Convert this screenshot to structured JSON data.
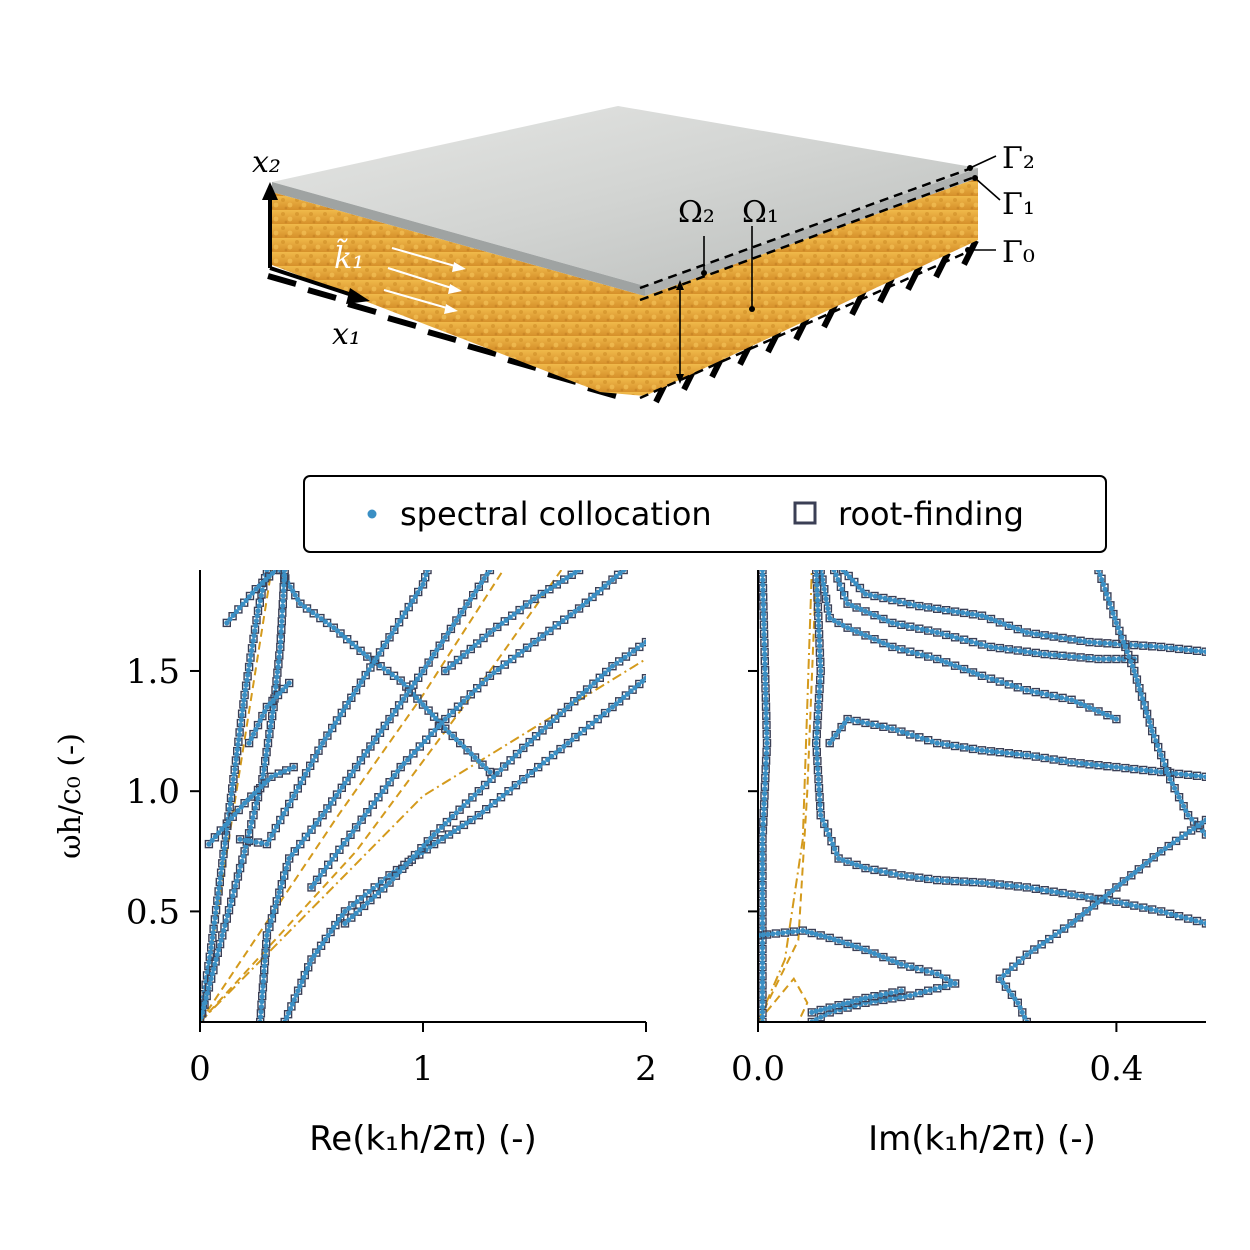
{
  "diagram": {
    "labels": {
      "x2": "x₂",
      "x1": "x₁",
      "k1": "k̃₁",
      "omega2": "Ω₂",
      "omega1": "Ω₁",
      "gamma2": "Γ₂",
      "gamma1": "Γ₁",
      "gamma0": "Γ₀"
    },
    "colors": {
      "plate": "#c8cbc9",
      "foam": "#e6a62c",
      "hatch": "#000000"
    }
  },
  "legend": {
    "spectral": "spectral collocation",
    "root": "root-finding",
    "placement": "top-center"
  },
  "colors": {
    "spectral": "#3a8fc4",
    "root": "#3b3f55",
    "analytic": "#d49a1c"
  },
  "chart_data": [
    {
      "type": "scatter",
      "xlabel": "Re(k₁h/2π) (-)",
      "ylabel": "ωh/c₀ (-)",
      "xlim": [
        0,
        2
      ],
      "ylim": [
        0.04,
        1.92
      ],
      "xticks": [
        0,
        1,
        2
      ],
      "xtick_labels": [
        "0",
        "1",
        "2"
      ],
      "yticks": [
        0.5,
        1.0,
        1.5
      ],
      "ytick_labels": [
        "0.5",
        "1.0",
        "1.5"
      ],
      "spectral_branches": [
        [
          [
            0.0,
            0.04
          ],
          [
            0.05,
            0.35
          ],
          [
            0.1,
            0.7
          ],
          [
            0.15,
            1.05
          ],
          [
            0.2,
            1.4
          ],
          [
            0.26,
            1.75
          ],
          [
            0.3,
            1.92
          ]
        ],
        [
          [
            0.12,
            1.7
          ],
          [
            0.25,
            1.84
          ],
          [
            0.34,
            1.92
          ]
        ],
        [
          [
            0.36,
            1.92
          ],
          [
            0.45,
            1.78
          ],
          [
            0.6,
            1.68
          ],
          [
            0.75,
            1.56
          ],
          [
            0.9,
            1.46
          ],
          [
            1.0,
            1.36
          ],
          [
            1.1,
            1.26
          ],
          [
            1.2,
            1.17
          ],
          [
            1.3,
            1.08
          ]
        ],
        [
          [
            0.0,
            0.04
          ],
          [
            0.1,
            0.4
          ],
          [
            0.2,
            0.75
          ],
          [
            0.28,
            1.05
          ],
          [
            0.33,
            1.35
          ],
          [
            0.36,
            1.6
          ],
          [
            0.38,
            1.92
          ]
        ],
        [
          [
            0.04,
            0.78
          ],
          [
            0.2,
            0.95
          ],
          [
            0.32,
            1.06
          ],
          [
            0.42,
            1.1
          ]
        ],
        [
          [
            0.27,
            0.04
          ],
          [
            0.3,
            0.4
          ],
          [
            0.4,
            0.72
          ],
          [
            0.55,
            0.9
          ],
          [
            0.7,
            1.1
          ],
          [
            0.85,
            1.3
          ],
          [
            1.0,
            1.5
          ],
          [
            1.1,
            1.64
          ],
          [
            1.2,
            1.78
          ],
          [
            1.3,
            1.92
          ]
        ],
        [
          [
            0.18,
            0.8
          ],
          [
            0.3,
            0.78
          ],
          [
            0.42,
            0.98
          ],
          [
            0.55,
            1.2
          ],
          [
            0.7,
            1.42
          ],
          [
            0.85,
            1.64
          ],
          [
            1.0,
            1.86
          ],
          [
            1.02,
            1.92
          ]
        ],
        [
          [
            0.22,
            1.2
          ],
          [
            0.3,
            1.35
          ],
          [
            0.4,
            1.45
          ]
        ],
        [
          [
            0.38,
            0.04
          ],
          [
            0.5,
            0.3
          ],
          [
            0.65,
            0.5
          ],
          [
            0.85,
            0.65
          ],
          [
            1.05,
            0.78
          ],
          [
            1.25,
            0.9
          ],
          [
            1.45,
            1.05
          ],
          [
            1.65,
            1.2
          ],
          [
            1.85,
            1.35
          ],
          [
            2.0,
            1.47
          ]
        ],
        [
          [
            0.65,
            0.45
          ],
          [
            0.85,
            0.62
          ],
          [
            1.05,
            0.82
          ],
          [
            1.25,
            1.0
          ],
          [
            1.45,
            1.18
          ],
          [
            1.65,
            1.35
          ],
          [
            1.85,
            1.52
          ],
          [
            2.0,
            1.62
          ]
        ],
        [
          [
            0.5,
            0.6
          ],
          [
            0.7,
            0.85
          ],
          [
            0.9,
            1.1
          ],
          [
            1.1,
            1.3
          ],
          [
            1.3,
            1.48
          ],
          [
            1.5,
            1.62
          ],
          [
            1.7,
            1.76
          ],
          [
            1.85,
            1.88
          ],
          [
            1.9,
            1.92
          ]
        ],
        [
          [
            1.1,
            1.5
          ],
          [
            1.3,
            1.66
          ],
          [
            1.5,
            1.8
          ],
          [
            1.7,
            1.92
          ]
        ]
      ],
      "analytic_dashed": [
        [
          [
            0.0,
            0.04
          ],
          [
            0.62,
            0.9
          ],
          [
            1.0,
            1.4
          ],
          [
            1.36,
            1.92
          ]
        ],
        [
          [
            0.0,
            0.04
          ],
          [
            0.7,
            0.75
          ],
          [
            1.3,
            1.5
          ],
          [
            1.62,
            1.92
          ]
        ],
        [
          [
            0.0,
            0.04
          ],
          [
            0.32,
            1.92
          ]
        ]
      ],
      "analytic_dashdot": [
        [
          [
            0.0,
            0.04
          ],
          [
            1.0,
            0.98
          ],
          [
            2.0,
            1.55
          ]
        ]
      ]
    },
    {
      "type": "scatter",
      "xlabel": "Im(k₁h/2π) (-)",
      "ylabel": "",
      "xlim": [
        0,
        0.5
      ],
      "ylim": [
        0.04,
        1.92
      ],
      "xticks": [
        0.0,
        0.4
      ],
      "xtick_labels": [
        "0.0",
        "0.4"
      ],
      "yticks": [
        0.5,
        1.0,
        1.5
      ],
      "ytick_labels": [
        "",
        "",
        ""
      ],
      "spectral_branches": [
        [
          [
            0.005,
            0.04
          ],
          [
            0.005,
            0.8
          ],
          [
            0.01,
            1.2
          ],
          [
            0.005,
            1.92
          ]
        ],
        [
          [
            0.07,
            1.92
          ],
          [
            0.08,
            1.72
          ],
          [
            0.1,
            1.68
          ],
          [
            0.15,
            1.6
          ],
          [
            0.2,
            1.55
          ],
          [
            0.25,
            1.48
          ],
          [
            0.3,
            1.42
          ],
          [
            0.35,
            1.38
          ],
          [
            0.4,
            1.3
          ]
        ],
        [
          [
            0.085,
            1.92
          ],
          [
            0.1,
            1.78
          ],
          [
            0.15,
            1.7
          ],
          [
            0.2,
            1.66
          ],
          [
            0.26,
            1.6
          ],
          [
            0.32,
            1.57
          ],
          [
            0.38,
            1.55
          ],
          [
            0.42,
            1.55
          ]
        ],
        [
          [
            0.095,
            1.92
          ],
          [
            0.12,
            1.82
          ],
          [
            0.18,
            1.77
          ],
          [
            0.25,
            1.73
          ],
          [
            0.3,
            1.66
          ],
          [
            0.37,
            1.62
          ],
          [
            0.45,
            1.6
          ],
          [
            0.5,
            1.58
          ]
        ],
        [
          [
            0.08,
            1.2
          ],
          [
            0.1,
            1.3
          ],
          [
            0.15,
            1.26
          ],
          [
            0.2,
            1.2
          ],
          [
            0.25,
            1.17
          ],
          [
            0.3,
            1.15
          ],
          [
            0.35,
            1.12
          ],
          [
            0.4,
            1.1
          ],
          [
            0.45,
            1.08
          ],
          [
            0.5,
            1.06
          ]
        ],
        [
          [
            0.065,
            1.92
          ],
          [
            0.07,
            1.5
          ],
          [
            0.065,
            1.2
          ],
          [
            0.07,
            0.9
          ],
          [
            0.09,
            0.72
          ],
          [
            0.12,
            0.68
          ],
          [
            0.16,
            0.65
          ],
          [
            0.2,
            0.63
          ],
          [
            0.25,
            0.62
          ],
          [
            0.3,
            0.6
          ],
          [
            0.35,
            0.57
          ],
          [
            0.4,
            0.54
          ],
          [
            0.45,
            0.5
          ],
          [
            0.5,
            0.45
          ]
        ],
        [
          [
            0.38,
            1.92
          ],
          [
            0.4,
            1.7
          ],
          [
            0.42,
            1.5
          ],
          [
            0.44,
            1.25
          ],
          [
            0.46,
            1.05
          ],
          [
            0.48,
            0.9
          ],
          [
            0.5,
            0.82
          ]
        ],
        [
          [
            0.5,
            0.88
          ],
          [
            0.45,
            0.75
          ],
          [
            0.4,
            0.6
          ],
          [
            0.35,
            0.45
          ],
          [
            0.3,
            0.32
          ],
          [
            0.27,
            0.22
          ],
          [
            0.29,
            0.12
          ],
          [
            0.3,
            0.04
          ]
        ],
        [
          [
            0.0,
            0.4
          ],
          [
            0.05,
            0.42
          ],
          [
            0.08,
            0.39
          ],
          [
            0.12,
            0.34
          ],
          [
            0.16,
            0.28
          ],
          [
            0.2,
            0.24
          ],
          [
            0.22,
            0.2
          ],
          [
            0.17,
            0.15
          ],
          [
            0.12,
            0.12
          ],
          [
            0.08,
            0.08
          ],
          [
            0.06,
            0.04
          ]
        ],
        [
          [
            0.06,
            0.08
          ],
          [
            0.09,
            0.11
          ],
          [
            0.12,
            0.14
          ],
          [
            0.16,
            0.17
          ]
        ]
      ],
      "analytic_dashed": [
        [
          [
            0.0,
            0.04
          ],
          [
            0.045,
            0.38
          ],
          [
            0.055,
            1.0
          ],
          [
            0.065,
            1.92
          ]
        ],
        [
          [
            0.0,
            0.04
          ],
          [
            0.04,
            0.22
          ],
          [
            0.055,
            0.12
          ],
          [
            0.045,
            0.04
          ]
        ]
      ],
      "analytic_dashdot": [
        [
          [
            0.0,
            0.04
          ],
          [
            0.03,
            0.3
          ],
          [
            0.05,
            0.8
          ],
          [
            0.06,
            1.92
          ]
        ]
      ]
    }
  ]
}
